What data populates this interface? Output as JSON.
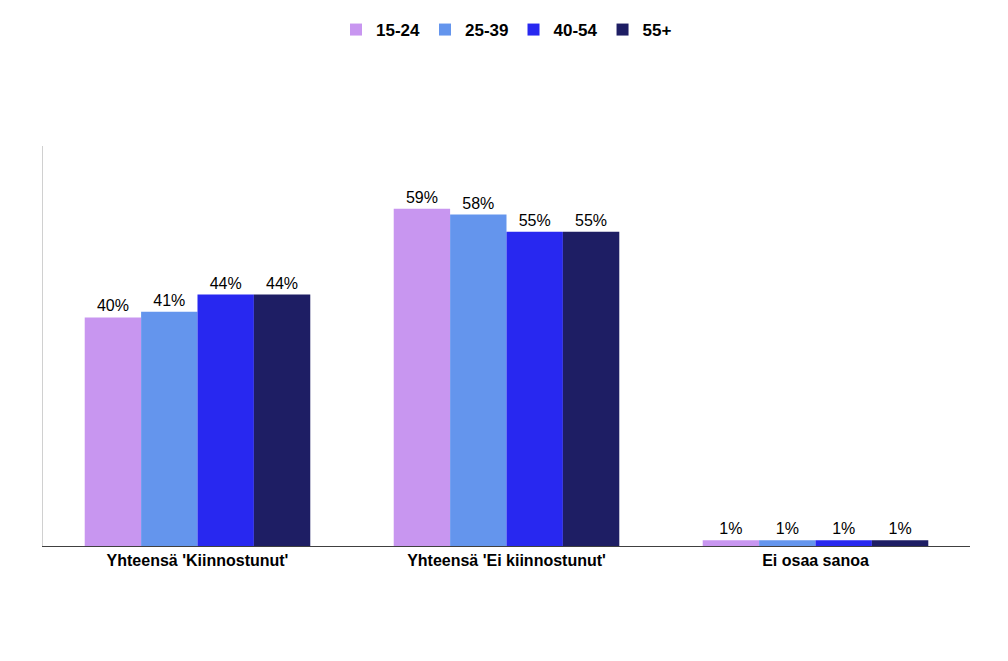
{
  "chart_data": {
    "type": "bar",
    "categories": [
      "Yhteensä 'Kiinnostunut'",
      "Yhteensä 'Ei kiinnostunut'",
      "Ei osaa sanoa"
    ],
    "series": [
      {
        "name": "15-24",
        "color": "#c896f0",
        "values": [
          40,
          59,
          1
        ],
        "value_labels": [
          "40%",
          "59%",
          "1%"
        ]
      },
      {
        "name": "25-39",
        "color": "#6495ed",
        "values": [
          41,
          58,
          1
        ],
        "value_labels": [
          "41%",
          "58%",
          "1%"
        ]
      },
      {
        "name": "40-54",
        "color": "#2828f0",
        "values": [
          44,
          55,
          1
        ],
        "value_labels": [
          "44%",
          "55%",
          "1%"
        ]
      },
      {
        "name": "55+",
        "color": "#1e1e64",
        "values": [
          44,
          55,
          1
        ],
        "value_labels": [
          "44%",
          "55%",
          "1%"
        ]
      }
    ],
    "ylim": [
      0,
      70
    ],
    "data_labels": true,
    "tick_labels": "x",
    "grid": false,
    "legend": "top"
  }
}
